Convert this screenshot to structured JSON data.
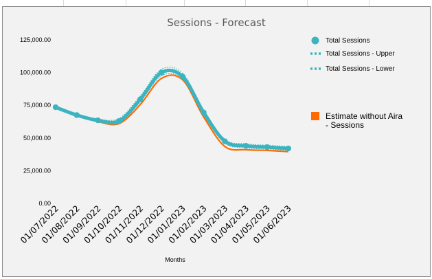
{
  "chart_data": {
    "type": "line",
    "title": "Sessions - Forecast",
    "xlabel": "Months",
    "ylabel": "",
    "ylim": [
      0,
      125000
    ],
    "yticks": [
      "0.00",
      "25,000.00",
      "50,000.00",
      "75,000.00",
      "100,000.00",
      "125,000.00"
    ],
    "ytick_values": [
      0,
      25000,
      50000,
      75000,
      100000,
      125000
    ],
    "categories": [
      "01/07/2022",
      "01/08/2022",
      "01/09/2022",
      "01/10/2022",
      "01/11/2022",
      "01/12/2022",
      "01/01/2023",
      "01/02/2023",
      "01/03/2023",
      "01/04/2023",
      "01/05/2023",
      "01/06/2023"
    ],
    "series": [
      {
        "name": "Total Sessions",
        "color": "#3cb4c0",
        "style": "solid-markers",
        "values": [
          73500,
          67500,
          63500,
          63000,
          79500,
          100000,
          97000,
          69500,
          47500,
          44000,
          43000,
          42000
        ]
      },
      {
        "name": "Total Sessions - Upper",
        "color": "#3cb4c0",
        "style": "dotted",
        "values": [
          74500,
          68500,
          64500,
          65000,
          82000,
          102500,
          99500,
          71500,
          49000,
          45500,
          44500,
          43500
        ]
      },
      {
        "name": "Total Sessions - Lower",
        "color": "#3cb4c0",
        "style": "dotted",
        "values": [
          72500,
          66500,
          62500,
          61500,
          77500,
          97500,
          95000,
          67500,
          46000,
          42500,
          41500,
          40500
        ]
      },
      {
        "name": "Estimate without Aira - Sessions",
        "color": "#ff6a00",
        "style": "solid",
        "values": [
          73000,
          67000,
          62500,
          61000,
          75500,
          95500,
          94500,
          66000,
          43500,
          41000,
          40500,
          39500
        ]
      }
    ],
    "grid": false,
    "legend_position": "right"
  }
}
